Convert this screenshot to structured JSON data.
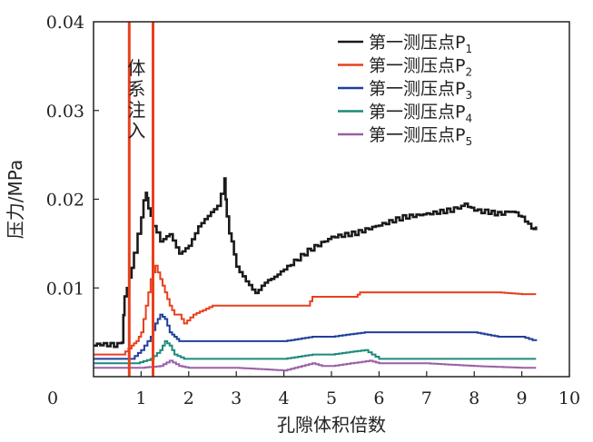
{
  "chart_data": {
    "type": "line",
    "xlabel": "孔隙体积倍数",
    "ylabel": "压力/MPa",
    "xlim": [
      0,
      10
    ],
    "ylim": [
      0,
      0.04
    ],
    "x_ticks": [
      {
        "value": 0,
        "label": "0"
      },
      {
        "value": 1,
        "label": "1"
      },
      {
        "value": 2,
        "label": "2"
      },
      {
        "value": 3,
        "label": "3"
      },
      {
        "value": 4,
        "label": "4"
      },
      {
        "value": 5,
        "label": "5"
      },
      {
        "value": 6,
        "label": "6"
      },
      {
        "value": 7,
        "label": "7"
      },
      {
        "value": 8,
        "label": "8"
      },
      {
        "value": 9,
        "label": "9"
      },
      {
        "value": 10,
        "label": "10"
      }
    ],
    "y_ticks": [
      {
        "value": 0.01,
        "label": "0.01"
      },
      {
        "value": 0.02,
        "label": "0.02"
      },
      {
        "value": 0.03,
        "label": "0.03"
      },
      {
        "value": 0.04,
        "label": "0.04"
      }
    ],
    "grid": false,
    "legend_position": "top-right",
    "annotation": {
      "text": "体系注入",
      "x": 1.0
    },
    "vertical_lines": [
      {
        "x": 0.75,
        "color": "#e8401c"
      },
      {
        "x": 1.25,
        "color": "#e8401c"
      }
    ],
    "series": [
      {
        "name": "第一测压点P",
        "sub": "1",
        "color": "#1a1a1a",
        "x": [
          0,
          0.5,
          0.6,
          0.65,
          0.75,
          0.85,
          1.0,
          1.1,
          1.15,
          1.25,
          1.4,
          1.6,
          1.8,
          2.0,
          2.2,
          2.4,
          2.6,
          2.75,
          2.8,
          2.9,
          3.0,
          3.2,
          3.4,
          3.6,
          3.8,
          4.0,
          4.5,
          5.0,
          5.5,
          6.0,
          6.5,
          7.0,
          7.5,
          7.8,
          8.0,
          8.3,
          8.5,
          8.8,
          9.0,
          9.2,
          9.3
        ],
        "y": [
          0.0035,
          0.0035,
          0.004,
          0.009,
          0.011,
          0.014,
          0.018,
          0.021,
          0.019,
          0.017,
          0.015,
          0.016,
          0.014,
          0.015,
          0.017,
          0.018,
          0.019,
          0.022,
          0.018,
          0.015,
          0.0125,
          0.011,
          0.0095,
          0.0105,
          0.011,
          0.012,
          0.014,
          0.0155,
          0.016,
          0.017,
          0.018,
          0.0185,
          0.019,
          0.0195,
          0.019,
          0.0185,
          0.0185,
          0.0185,
          0.018,
          0.017,
          0.0165
        ]
      },
      {
        "name": "第一测压点P",
        "sub": "2",
        "color": "#e8401c",
        "x": [
          0,
          0.6,
          0.8,
          0.9,
          1.0,
          1.1,
          1.2,
          1.3,
          1.4,
          1.5,
          1.6,
          1.7,
          1.8,
          1.9,
          2.1,
          2.3,
          2.5,
          3.0,
          3.5,
          4.0,
          4.5,
          4.6,
          5.0,
          5.5,
          5.6,
          6.0,
          7.0,
          7.5,
          8.0,
          8.5,
          9.0,
          9.3
        ],
        "y": [
          0.0025,
          0.0025,
          0.0035,
          0.004,
          0.005,
          0.008,
          0.011,
          0.0125,
          0.011,
          0.0095,
          0.008,
          0.007,
          0.007,
          0.006,
          0.007,
          0.0075,
          0.008,
          0.008,
          0.008,
          0.008,
          0.008,
          0.009,
          0.009,
          0.009,
          0.0095,
          0.0095,
          0.0095,
          0.0095,
          0.0095,
          0.0095,
          0.0093,
          0.0093
        ]
      },
      {
        "name": "第一测压点P",
        "sub": "3",
        "color": "#1f3f9a",
        "x": [
          0,
          0.8,
          1.0,
          1.2,
          1.3,
          1.4,
          1.5,
          1.6,
          1.7,
          1.8,
          2.0,
          2.5,
          3.0,
          4.0,
          4.6,
          5.0,
          5.7,
          6.0,
          7.0,
          8.0,
          8.5,
          9.0,
          9.3
        ],
        "y": [
          0.002,
          0.002,
          0.003,
          0.0045,
          0.006,
          0.007,
          0.0065,
          0.005,
          0.0045,
          0.004,
          0.004,
          0.004,
          0.004,
          0.004,
          0.0045,
          0.0045,
          0.005,
          0.005,
          0.005,
          0.005,
          0.0045,
          0.0045,
          0.004
        ]
      },
      {
        "name": "第一测压点P",
        "sub": "4",
        "color": "#1b8a7a",
        "x": [
          0,
          0.9,
          1.2,
          1.4,
          1.5,
          1.6,
          1.7,
          1.9,
          2.5,
          3.0,
          4.0,
          4.6,
          5.0,
          5.7,
          6.0,
          7.0,
          8.0,
          9.0,
          9.3
        ],
        "y": [
          0.0015,
          0.0015,
          0.002,
          0.003,
          0.004,
          0.0035,
          0.0025,
          0.002,
          0.002,
          0.002,
          0.002,
          0.0025,
          0.0025,
          0.003,
          0.002,
          0.002,
          0.002,
          0.002,
          0.002
        ]
      },
      {
        "name": "第一测压点P",
        "sub": "5",
        "color": "#9b5fa8",
        "x": [
          0,
          1.0,
          1.4,
          1.6,
          1.8,
          2.0,
          3.0,
          4.0,
          4.6,
          4.8,
          5.0,
          5.8,
          6.0,
          7.0,
          8.0,
          9.0,
          9.3
        ],
        "y": [
          0.001,
          0.001,
          0.0012,
          0.0018,
          0.0012,
          0.001,
          0.001,
          0.0007,
          0.0015,
          0.0012,
          0.0012,
          0.0018,
          0.0015,
          0.0015,
          0.0012,
          0.001,
          0.001
        ]
      }
    ]
  }
}
